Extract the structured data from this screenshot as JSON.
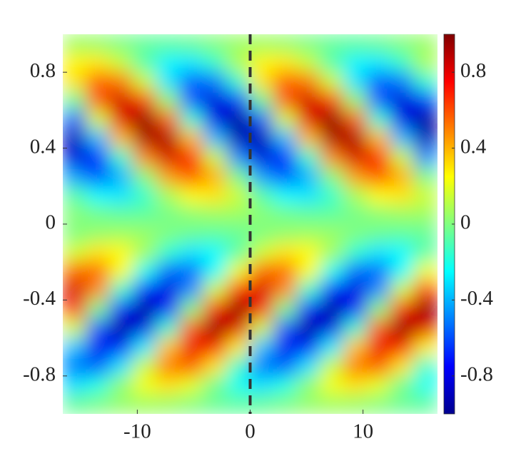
{
  "chart_data": {
    "type": "heatmap",
    "x": [
      -15.56,
      -13.49,
      -11.41,
      -9.34,
      -7.26,
      -5.19,
      -3.11,
      -1.04,
      1.04,
      3.11,
      5.19,
      7.26,
      9.34,
      11.41,
      13.49,
      15.56
    ],
    "y": [
      0.95,
      0.85,
      0.75,
      0.65,
      0.55,
      0.45,
      0.35,
      0.25,
      0.15,
      0.05,
      -0.05,
      -0.15,
      -0.25,
      -0.35,
      -0.45,
      -0.55,
      -0.65,
      -0.75,
      -0.85,
      -0.95
    ],
    "z": [
      [
        0.06,
        0.04,
        -0.01,
        -0.05,
        -0.06,
        -0.04,
        0.01,
        0.05,
        0.06,
        0.04,
        -0.01,
        -0.05,
        -0.06,
        -0.04,
        0.01,
        0.05
      ],
      [
        0.27,
        0.29,
        0.14,
        -0.09,
        -0.27,
        -0.29,
        -0.14,
        0.09,
        0.27,
        0.29,
        0.14,
        -0.09,
        -0.27,
        -0.29,
        -0.14,
        0.09
      ],
      [
        0.3,
        0.57,
        0.51,
        0.15,
        -0.3,
        -0.57,
        -0.51,
        -0.15,
        0.3,
        0.57,
        0.51,
        0.15,
        -0.3,
        -0.57,
        -0.51,
        -0.15
      ],
      [
        -0.04,
        0.57,
        0.84,
        0.62,
        0.04,
        -0.57,
        -0.84,
        -0.62,
        -0.04,
        0.57,
        0.84,
        0.62,
        0.04,
        -0.57,
        -0.84,
        -0.62
      ],
      [
        -0.56,
        0.17,
        0.8,
        0.97,
        0.56,
        -0.17,
        -0.8,
        -0.97,
        -0.56,
        0.17,
        0.8,
        0.97,
        0.56,
        -0.17,
        -0.8,
        -0.97
      ],
      [
        -0.91,
        -0.38,
        0.38,
        0.91,
        0.91,
        0.38,
        -0.38,
        -0.91,
        -0.91,
        -0.38,
        0.38,
        0.91,
        0.91,
        0.38,
        -0.38,
        -0.91
      ],
      [
        -0.83,
        -0.69,
        -0.15,
        0.48,
        0.83,
        0.69,
        0.15,
        -0.48,
        -0.83,
        -0.69,
        -0.15,
        0.48,
        0.83,
        0.69,
        0.15,
        -0.48
      ],
      [
        -0.44,
        -0.59,
        -0.4,
        0.02,
        0.44,
        0.59,
        0.4,
        -0.02,
        -0.44,
        -0.59,
        -0.4,
        0.02,
        0.44,
        0.59,
        0.4,
        -0.02
      ],
      [
        -0.08,
        -0.26,
        -0.3,
        -0.15,
        0.08,
        0.26,
        0.3,
        0.15,
        -0.08,
        -0.26,
        -0.3,
        -0.15,
        0.08,
        0.26,
        0.3,
        0.15
      ],
      [
        0.02,
        -0.03,
        -0.06,
        -0.06,
        -0.02,
        0.03,
        0.06,
        0.06,
        0.02,
        -0.03,
        -0.06,
        -0.06,
        -0.02,
        0.03,
        0.06,
        0.06
      ],
      [
        0.0,
        0.04,
        0.06,
        0.05,
        0.0,
        -0.04,
        -0.06,
        -0.05,
        0.0,
        0.04,
        0.06,
        0.05,
        0.0,
        -0.04,
        -0.06,
        -0.05
      ],
      [
        0.16,
        0.3,
        0.26,
        0.07,
        -0.16,
        -0.3,
        -0.26,
        -0.07,
        0.16,
        0.3,
        0.26,
        0.07,
        -0.16,
        -0.3,
        -0.26,
        -0.07
      ],
      [
        0.55,
        0.55,
        0.24,
        -0.22,
        -0.55,
        -0.55,
        -0.24,
        0.22,
        0.55,
        0.55,
        0.24,
        -0.22,
        -0.55,
        -0.55,
        -0.24,
        0.22
      ],
      [
        0.83,
        0.47,
        -0.16,
        -0.7,
        -0.83,
        -0.47,
        0.16,
        0.7,
        0.83,
        0.47,
        -0.16,
        -0.7,
        -0.83,
        -0.47,
        0.16,
        0.7
      ],
      [
        0.68,
        -0.02,
        -0.71,
        -0.98,
        -0.68,
        0.02,
        0.71,
        0.98,
        0.68,
        -0.02,
        -0.71,
        -0.98,
        -0.68,
        0.02,
        0.71,
        0.98
      ],
      [
        0.16,
        -0.57,
        -0.97,
        -0.8,
        -0.16,
        0.57,
        0.97,
        0.8,
        0.16,
        -0.57,
        -0.97,
        -0.8,
        -0.16,
        0.57,
        0.97,
        0.8
      ],
      [
        -0.36,
        -0.79,
        -0.76,
        -0.28,
        0.36,
        0.79,
        0.76,
        0.28,
        -0.36,
        -0.79,
        -0.76,
        -0.28,
        0.36,
        0.79,
        0.76,
        0.28
      ],
      [
        -0.52,
        -0.57,
        -0.3,
        0.15,
        0.52,
        0.57,
        0.3,
        -0.15,
        -0.52,
        -0.57,
        -0.3,
        0.15,
        0.52,
        0.57,
        0.3,
        -0.15
      ],
      [
        -0.31,
        -0.2,
        0.03,
        0.23,
        0.31,
        0.2,
        -0.03,
        -0.23,
        -0.31,
        -0.2,
        0.03,
        0.23,
        0.31,
        0.2,
        -0.03,
        -0.23
      ],
      [
        -0.05,
        -0.01,
        0.04,
        0.06,
        0.05,
        0.01,
        -0.04,
        -0.06,
        -0.05,
        -0.01,
        0.04,
        0.06,
        0.05,
        0.01,
        -0.04,
        -0.06
      ]
    ],
    "xlim": [
      -16.6,
      16.6
    ],
    "ylim": [
      -1,
      1
    ],
    "xticks": [
      -10,
      0,
      10
    ],
    "yticks": [
      -0.8,
      -0.4,
      0,
      0.4,
      0.8
    ],
    "clim": [
      -1,
      1
    ],
    "cticks": [
      -0.8,
      -0.4,
      0,
      0.4,
      0.8
    ],
    "colormap": [
      "#00008f",
      "#0000ff",
      "#0080ff",
      "#00ffff",
      "#80ff80",
      "#ffff00",
      "#ff8000",
      "#ff0000",
      "#800000"
    ],
    "vline": 0,
    "vline_color": "#333333"
  }
}
